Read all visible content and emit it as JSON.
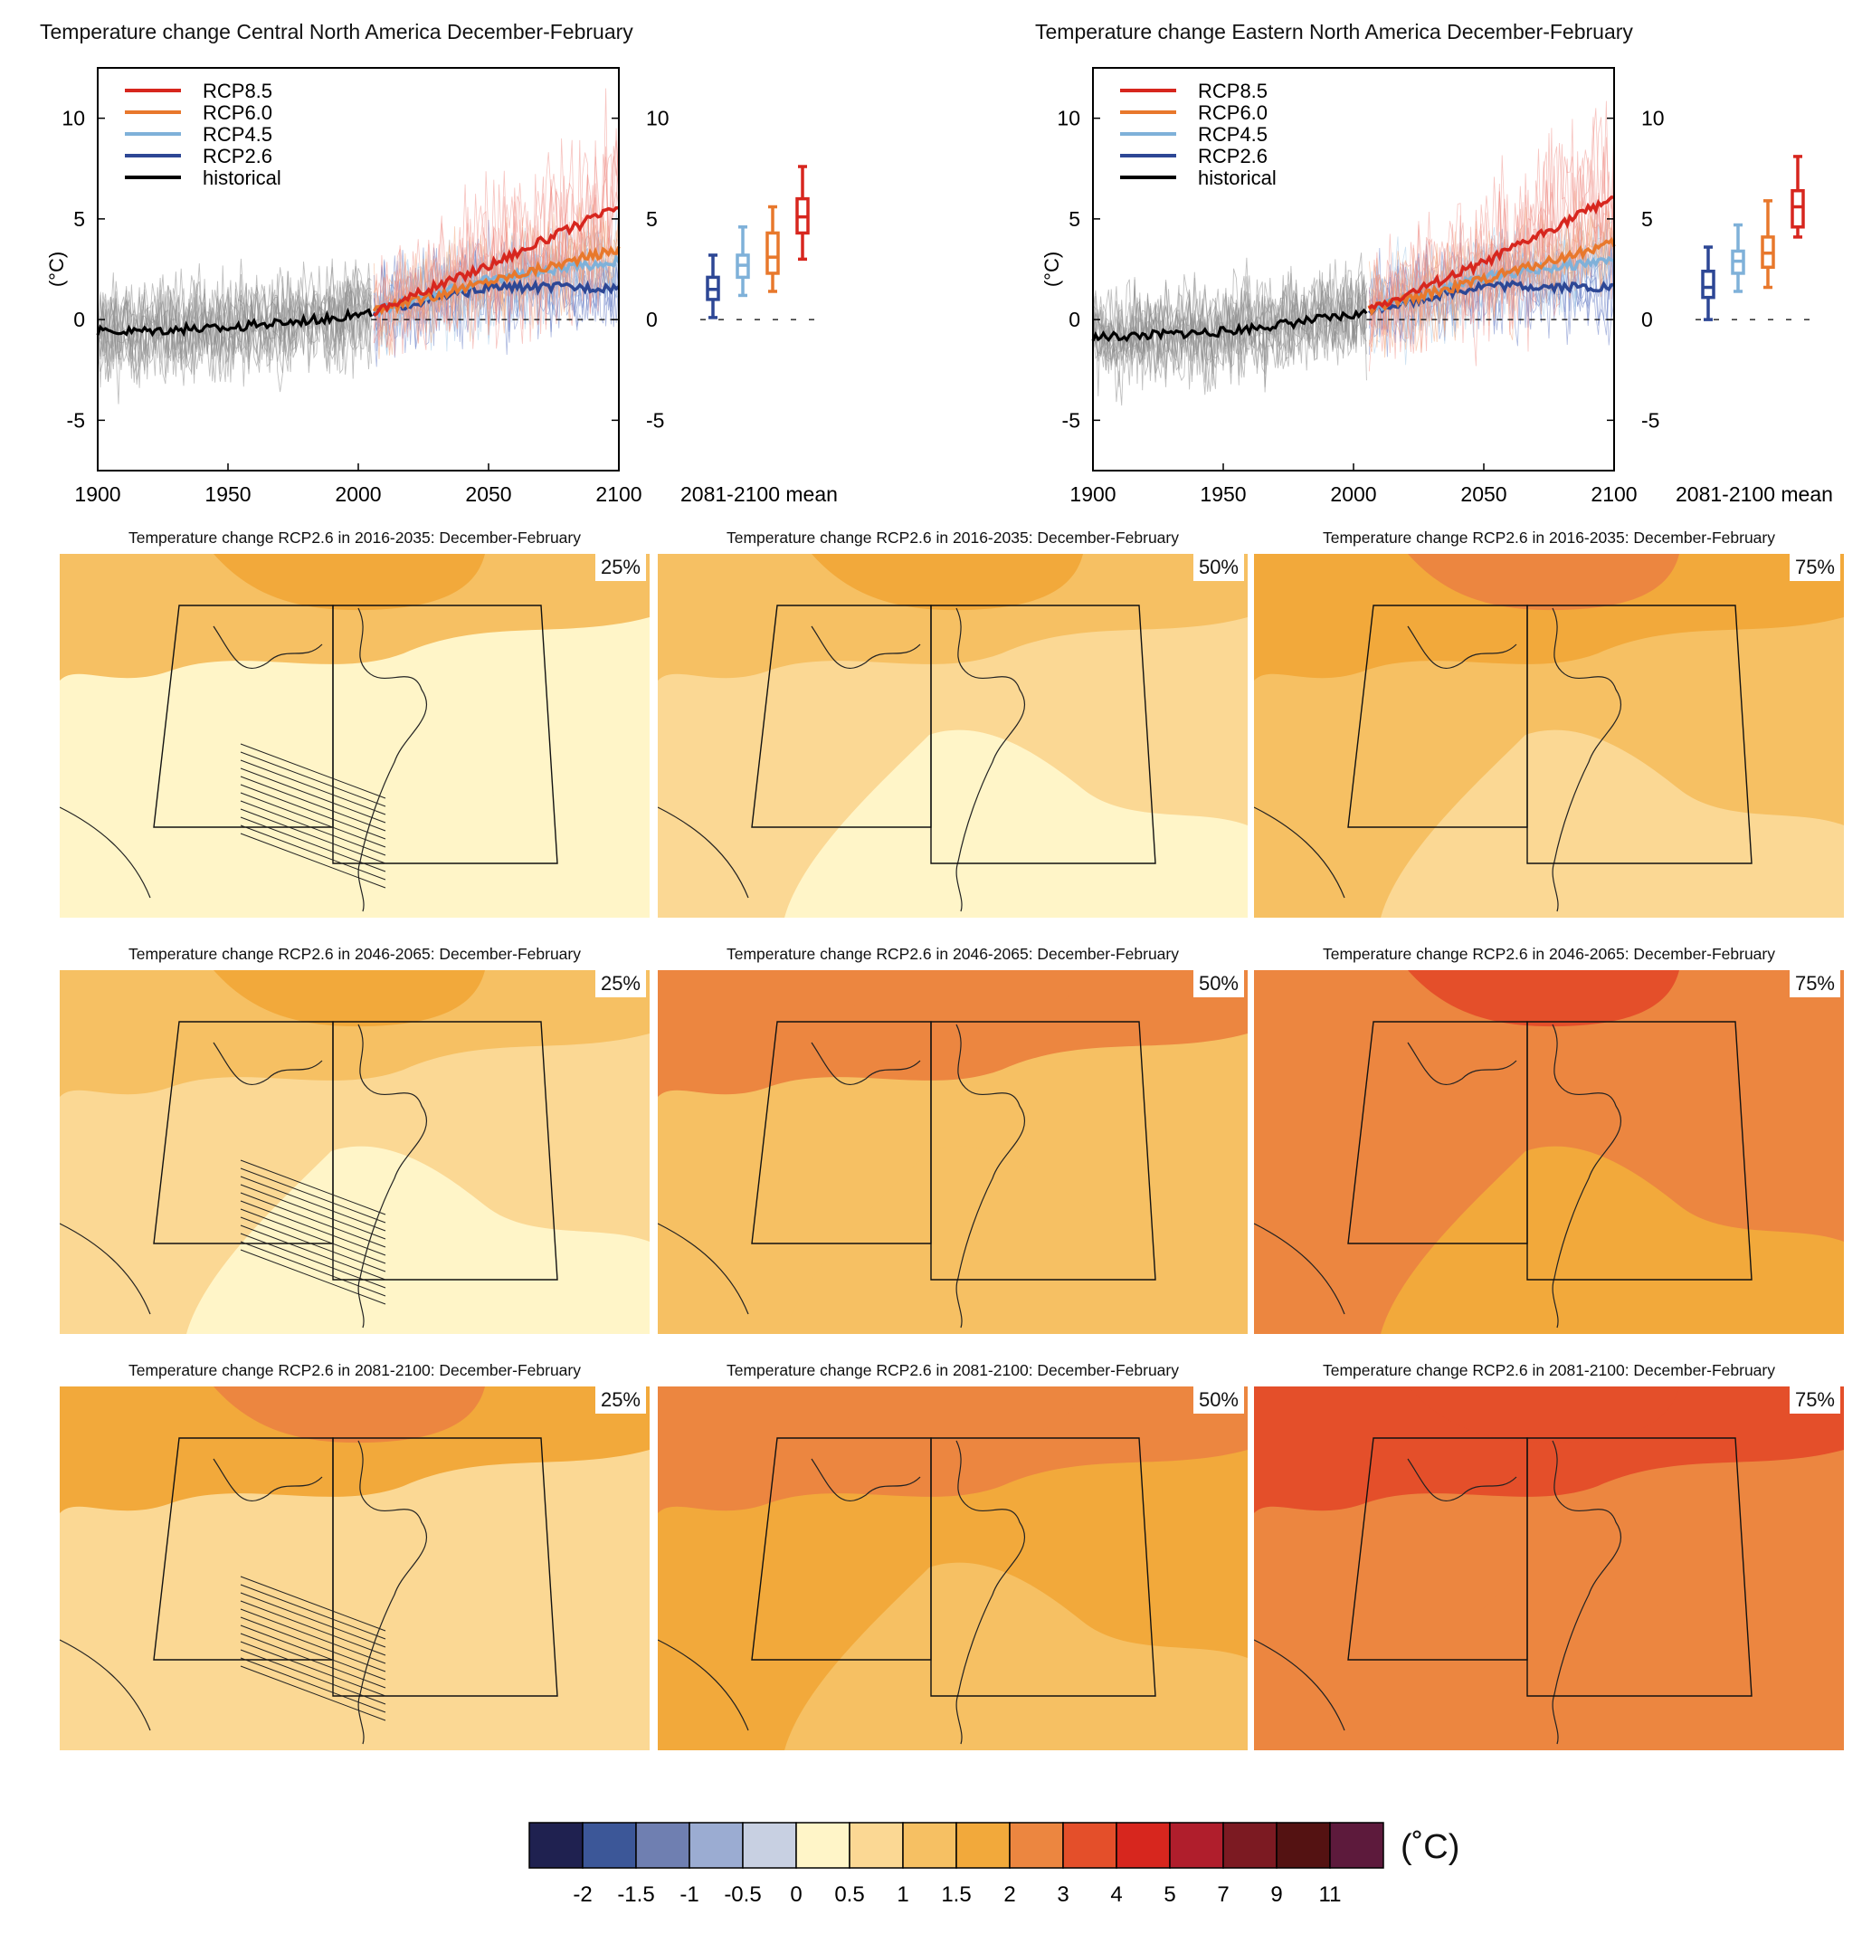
{
  "timeseries": [
    {
      "title": "Temperature change Central North America December-February",
      "seed": 11
    },
    {
      "title": "Temperature change Eastern North America December-February",
      "seed": 29
    }
  ],
  "chart_data": {
    "type": "line",
    "x_range": [
      1900,
      2100
    ],
    "x_ticks": [
      "1900",
      "1950",
      "2000",
      "2050",
      "2100"
    ],
    "y_ticks": [
      "10",
      "5",
      "0",
      "-5"
    ],
    "ylabel": "(°C)",
    "ylim": [
      -7.5,
      12.5
    ],
    "box_axis_label": "2081-2100 mean",
    "legend": [
      {
        "name": "RCP8.5",
        "color": "#d7261e"
      },
      {
        "name": "RCP6.0",
        "color": "#e8782c"
      },
      {
        "name": "RCP4.5",
        "color": "#7fb1d9"
      },
      {
        "name": "RCP2.6",
        "color": "#2d4795"
      },
      {
        "name": "historical",
        "color": "#000000"
      }
    ],
    "series_central": {
      "historical": {
        "x": [
          1900,
          1950,
          2005
        ],
        "y": [
          -0.6,
          -0.4,
          0.3
        ]
      },
      "RCP2.6": {
        "x": [
          2006,
          2050,
          2100
        ],
        "y": [
          0.4,
          1.6,
          1.6
        ]
      },
      "RCP4.5": {
        "x": [
          2006,
          2050,
          2100
        ],
        "y": [
          0.4,
          2.0,
          2.9
        ]
      },
      "RCP6.0": {
        "x": [
          2006,
          2050,
          2100
        ],
        "y": [
          0.4,
          1.9,
          3.5
        ]
      },
      "RCP8.5": {
        "x": [
          2006,
          2050,
          2100
        ],
        "y": [
          0.4,
          2.7,
          5.6
        ]
      }
    },
    "series_eastern": {
      "historical": {
        "x": [
          1900,
          1950,
          2005
        ],
        "y": [
          -0.9,
          -0.6,
          0.3
        ]
      },
      "RCP2.6": {
        "x": [
          2006,
          2050,
          2100
        ],
        "y": [
          0.5,
          1.7,
          1.6
        ]
      },
      "RCP4.5": {
        "x": [
          2006,
          2050,
          2100
        ],
        "y": [
          0.5,
          2.1,
          3.0
        ]
      },
      "RCP6.0": {
        "x": [
          2006,
          2050,
          2100
        ],
        "y": [
          0.5,
          2.0,
          3.8
        ]
      },
      "RCP8.5": {
        "x": [
          2006,
          2050,
          2100
        ],
        "y": [
          0.5,
          2.8,
          6.1
        ]
      }
    },
    "boxes_central": [
      {
        "name": "RCP2.6",
        "min": 0.1,
        "p25": 1.0,
        "median": 1.5,
        "p75": 2.1,
        "max": 3.2
      },
      {
        "name": "RCP4.5",
        "min": 1.2,
        "p25": 2.1,
        "median": 2.7,
        "p75": 3.2,
        "max": 4.6
      },
      {
        "name": "RCP6.0",
        "min": 1.4,
        "p25": 2.3,
        "median": 3.1,
        "p75": 4.3,
        "max": 5.6
      },
      {
        "name": "RCP8.5",
        "min": 3.0,
        "p25": 4.3,
        "median": 5.1,
        "p75": 6.0,
        "max": 7.6
      }
    ],
    "boxes_eastern": [
      {
        "name": "RCP2.6",
        "min": 0.0,
        "p25": 1.1,
        "median": 1.6,
        "p75": 2.4,
        "max": 3.6
      },
      {
        "name": "RCP4.5",
        "min": 1.4,
        "p25": 2.3,
        "median": 2.9,
        "p75": 3.4,
        "max": 4.7
      },
      {
        "name": "RCP6.0",
        "min": 1.6,
        "p25": 2.6,
        "median": 3.3,
        "p75": 4.1,
        "max": 5.9
      },
      {
        "name": "RCP8.5",
        "min": 4.1,
        "p25": 4.6,
        "median": 5.6,
        "p75": 6.4,
        "max": 8.1
      }
    ]
  },
  "maps": {
    "rows": [
      {
        "title": "Temperature change RCP2.6 in 2016-2035: December-February",
        "levels": [
          0.5,
          0.9,
          1.3
        ],
        "hatch": [
          true,
          false,
          false
        ]
      },
      {
        "title": "Temperature change RCP2.6 in 2046-2065: December-February",
        "levels": [
          0.9,
          1.5,
          2.2
        ],
        "hatch": [
          true,
          false,
          false
        ]
      },
      {
        "title": "Temperature change RCP2.6 in 2081-2100: December-February",
        "levels": [
          1.0,
          1.7,
          2.5
        ],
        "hatch": [
          true,
          false,
          false
        ]
      }
    ],
    "percentiles": [
      "25%",
      "50%",
      "75%"
    ]
  },
  "colorbar": {
    "colors": [
      "#1f2150",
      "#3c5798",
      "#6f7fb1",
      "#9bacd2",
      "#c8d0e2",
      "#fff5c8",
      "#fbd894",
      "#f6c063",
      "#f2a93b",
      "#ec8640",
      "#e44f2a",
      "#d7261e",
      "#b01e2c",
      "#7c1a22",
      "#541212",
      "#5d1a3c"
    ],
    "labels": [
      "-2",
      "-1.5",
      "-1",
      "-0.5",
      "0",
      "0.5",
      "1",
      "1.5",
      "2",
      "3",
      "4",
      "5",
      "7",
      "9",
      "11"
    ],
    "unit": "(˚C)"
  }
}
